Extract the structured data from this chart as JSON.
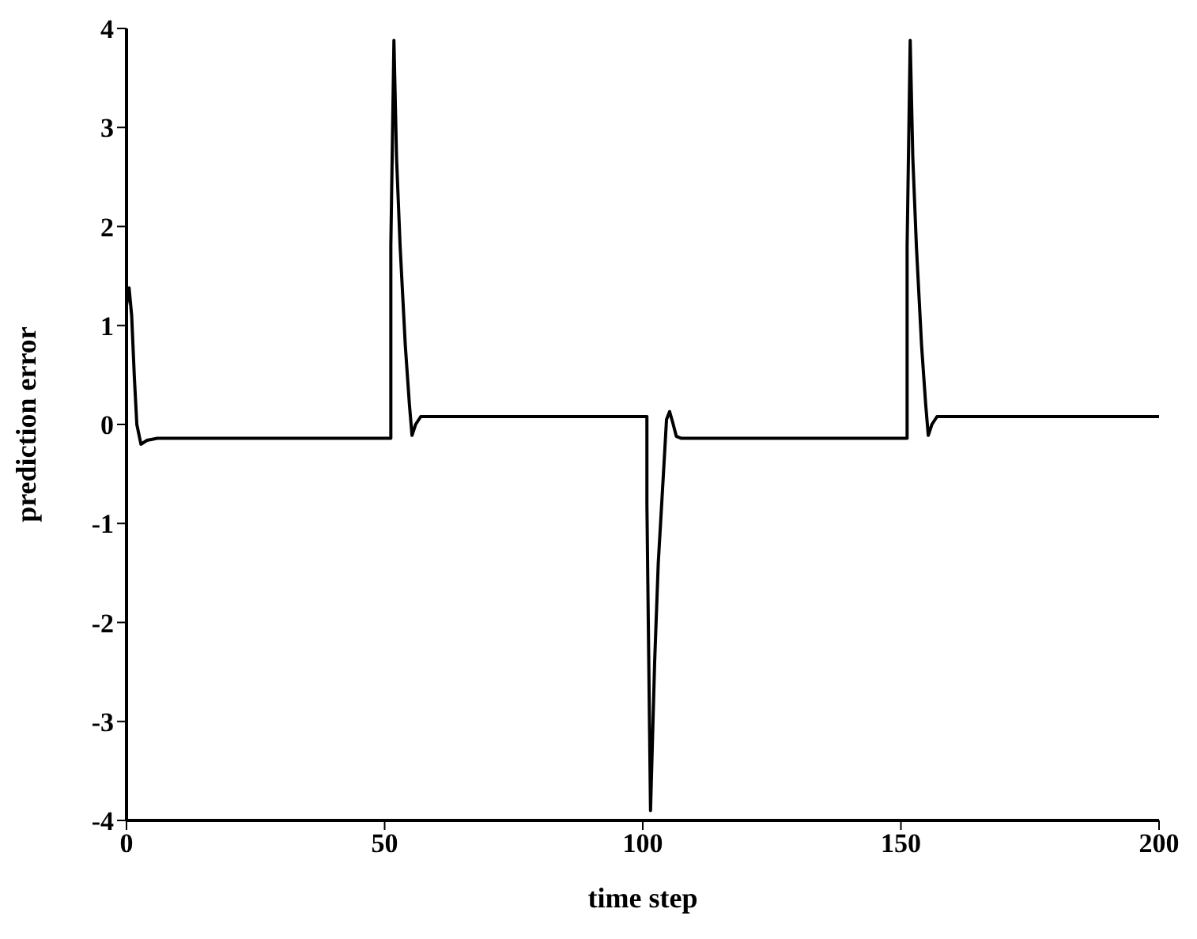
{
  "chart_data": {
    "type": "line",
    "xlabel": "time step",
    "ylabel": "prediction error",
    "x": [
      0,
      0.5,
      1,
      1.5,
      2,
      2.8,
      4,
      6,
      51.2,
      51.2,
      51.8,
      52.3,
      53,
      54,
      54.8,
      55.3,
      56,
      57,
      100.8,
      100.8,
      101.5,
      102.3,
      103,
      104,
      104.6,
      105.2,
      105.8,
      106.5,
      107.5,
      151.2,
      151.2,
      151.8,
      152.3,
      153,
      154,
      154.8,
      155.3,
      156,
      157,
      200
    ],
    "series": [
      {
        "color": "#000000",
        "values": [
          1.2,
          1.38,
          1.1,
          0.5,
          0.0,
          -0.2,
          -0.16,
          -0.14,
          -0.14,
          1.8,
          3.88,
          2.7,
          1.8,
          0.8,
          0.2,
          -0.11,
          0.0,
          0.08,
          0.08,
          -0.8,
          -3.9,
          -2.4,
          -1.4,
          -0.5,
          0.05,
          0.13,
          0.02,
          -0.12,
          -0.14,
          -0.14,
          1.8,
          3.88,
          2.7,
          1.8,
          0.8,
          0.2,
          -0.11,
          0.0,
          0.08,
          0.08
        ]
      }
    ],
    "xlim": [
      0,
      200
    ],
    "xticks": [
      0,
      50,
      100,
      150,
      200
    ],
    "ylim": [
      -4,
      4
    ],
    "yticks": [
      -4,
      -3,
      -2,
      -1,
      0,
      1,
      2,
      3,
      4
    ],
    "grid": false,
    "legend": false,
    "marker": "none",
    "line_style": "solid"
  }
}
